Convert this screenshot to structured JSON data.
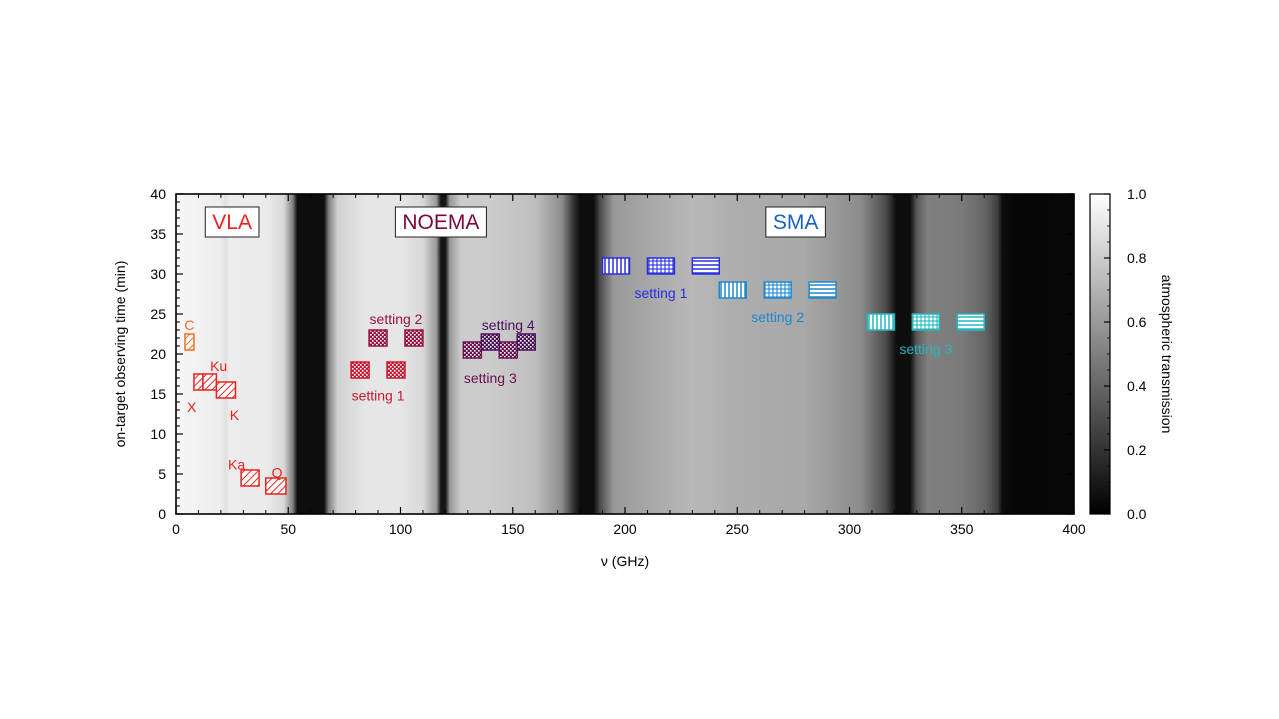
{
  "chart_data": {
    "type": "heatmap",
    "xlabel": "ν  (GHz)",
    "ylabel": "on-target observing time  (min)",
    "xlim": [
      0,
      400
    ],
    "ylim": [
      0,
      40
    ],
    "xticks": [
      "0",
      "50",
      "100",
      "150",
      "200",
      "250",
      "300",
      "350",
      "400"
    ],
    "yticks": [
      "0",
      "5",
      "10",
      "15",
      "20",
      "25",
      "30",
      "35",
      "40"
    ],
    "colorbar": {
      "label": "atmospheric transmission",
      "range": [
        0.0,
        1.0
      ],
      "ticks": [
        "0.0",
        "0.2",
        "0.4",
        "0.6",
        "0.8",
        "1.0"
      ],
      "colormap": "grayscale"
    },
    "transmission_profile": [
      [
        0,
        0.97
      ],
      [
        20,
        0.93
      ],
      [
        22,
        0.88
      ],
      [
        24,
        0.93
      ],
      [
        40,
        0.92
      ],
      [
        48,
        0.85
      ],
      [
        52,
        0.5
      ],
      [
        54,
        0.05
      ],
      [
        66,
        0.05
      ],
      [
        68,
        0.5
      ],
      [
        72,
        0.82
      ],
      [
        85,
        0.9
      ],
      [
        100,
        0.9
      ],
      [
        110,
        0.85
      ],
      [
        116,
        0.6
      ],
      [
        118,
        0.08
      ],
      [
        120,
        0.08
      ],
      [
        122,
        0.6
      ],
      [
        127,
        0.8
      ],
      [
        140,
        0.8
      ],
      [
        160,
        0.75
      ],
      [
        172,
        0.55
      ],
      [
        177,
        0.2
      ],
      [
        180,
        0.05
      ],
      [
        186,
        0.05
      ],
      [
        189,
        0.3
      ],
      [
        195,
        0.6
      ],
      [
        230,
        0.72
      ],
      [
        250,
        0.68
      ],
      [
        280,
        0.66
      ],
      [
        305,
        0.55
      ],
      [
        316,
        0.3
      ],
      [
        321,
        0.05
      ],
      [
        327,
        0.05
      ],
      [
        330,
        0.35
      ],
      [
        335,
        0.5
      ],
      [
        350,
        0.48
      ],
      [
        360,
        0.4
      ],
      [
        366,
        0.25
      ],
      [
        368,
        0.05
      ],
      [
        375,
        0.02
      ],
      [
        400,
        0.03
      ]
    ],
    "facilities": [
      {
        "name": "VLA",
        "x": 25,
        "y": 36.5,
        "color": "#e8231e"
      },
      {
        "name": "NOEMA",
        "x": 118,
        "y": 36.5,
        "color": "#7a0a3a"
      },
      {
        "name": "SMA",
        "x": 276,
        "y": 36.5,
        "color": "#1a5fc8"
      }
    ],
    "bands": [
      {
        "group": "VLA",
        "label": "C",
        "x0": 4,
        "x1": 8,
        "y0": 20.5,
        "y1": 22.5,
        "color": "#f07024",
        "pattern": "diag"
      },
      {
        "group": "VLA",
        "label": "X",
        "x0": 8,
        "x1": 12,
        "y0": 15.5,
        "y1": 17.5,
        "color": "#e8231e",
        "pattern": "diag"
      },
      {
        "group": "VLA",
        "label": "Ku",
        "x0": 12,
        "x1": 18,
        "y0": 15.5,
        "y1": 17.5,
        "color": "#e8231e",
        "pattern": "diag"
      },
      {
        "group": "VLA",
        "label": "K",
        "x0": 18,
        "x1": 26.5,
        "y0": 14.5,
        "y1": 16.5,
        "color": "#e8231e",
        "pattern": "diag"
      },
      {
        "group": "VLA",
        "label": "Ka",
        "x0": 29,
        "x1": 37,
        "y0": 3.5,
        "y1": 5.5,
        "color": "#e8231e",
        "pattern": "diag"
      },
      {
        "group": "VLA",
        "label": "Q",
        "x0": 40,
        "x1": 49,
        "y0": 2.5,
        "y1": 4.5,
        "color": "#e8231e",
        "pattern": "diag"
      },
      {
        "group": "NOEMA",
        "label": "setting 1",
        "x0": 78,
        "x1": 86,
        "y0": 17,
        "y1": 19,
        "color": "#c81a30",
        "pattern": "check"
      },
      {
        "group": "NOEMA",
        "label": "setting 1",
        "x0": 94,
        "x1": 102,
        "y0": 17,
        "y1": 19,
        "color": "#c81a30",
        "pattern": "check"
      },
      {
        "group": "NOEMA",
        "label": "setting 2",
        "x0": 86,
        "x1": 94,
        "y0": 21,
        "y1": 23,
        "color": "#98143e",
        "pattern": "check"
      },
      {
        "group": "NOEMA",
        "label": "setting 2",
        "x0": 102,
        "x1": 110,
        "y0": 21,
        "y1": 23,
        "color": "#98143e",
        "pattern": "check"
      },
      {
        "group": "NOEMA",
        "label": "setting 3",
        "x0": 128,
        "x1": 136,
        "y0": 19.5,
        "y1": 21.5,
        "color": "#6a1050",
        "pattern": "check"
      },
      {
        "group": "NOEMA",
        "label": "setting 3",
        "x0": 144,
        "x1": 152,
        "y0": 19.5,
        "y1": 21.5,
        "color": "#6a1050",
        "pattern": "check"
      },
      {
        "group": "NOEMA",
        "label": "setting 4",
        "x0": 136,
        "x1": 144,
        "y0": 20.5,
        "y1": 22.5,
        "color": "#4a1058",
        "pattern": "check"
      },
      {
        "group": "NOEMA",
        "label": "setting 4",
        "x0": 152,
        "x1": 160,
        "y0": 20.5,
        "y1": 22.5,
        "color": "#4a1058",
        "pattern": "check"
      },
      {
        "group": "SMA",
        "label": "setting 1",
        "x0": 190,
        "x1": 202,
        "y0": 30,
        "y1": 32,
        "color": "#2a2ee0",
        "pattern": "vert"
      },
      {
        "group": "SMA",
        "label": "setting 1",
        "x0": 210,
        "x1": 222,
        "y0": 30,
        "y1": 32,
        "color": "#2a2ee0",
        "pattern": "grid"
      },
      {
        "group": "SMA",
        "label": "setting 1",
        "x0": 230,
        "x1": 242,
        "y0": 30,
        "y1": 32,
        "color": "#2a2ee0",
        "pattern": "horiz"
      },
      {
        "group": "SMA",
        "label": "setting 2",
        "x0": 242,
        "x1": 254,
        "y0": 27,
        "y1": 29,
        "color": "#1e88d0",
        "pattern": "vert"
      },
      {
        "group": "SMA",
        "label": "setting 2",
        "x0": 262,
        "x1": 274,
        "y0": 27,
        "y1": 29,
        "color": "#1e88d0",
        "pattern": "grid"
      },
      {
        "group": "SMA",
        "label": "setting 2",
        "x0": 282,
        "x1": 294,
        "y0": 27,
        "y1": 29,
        "color": "#1e88d0",
        "pattern": "horiz"
      },
      {
        "group": "SMA",
        "label": "setting 3",
        "x0": 308,
        "x1": 320,
        "y0": 23,
        "y1": 25,
        "color": "#22b8c0",
        "pattern": "vert"
      },
      {
        "group": "SMA",
        "label": "setting 3",
        "x0": 328,
        "x1": 340,
        "y0": 23,
        "y1": 25,
        "color": "#22b8c0",
        "pattern": "grid"
      },
      {
        "group": "SMA",
        "label": "setting 3",
        "x0": 348,
        "x1": 360,
        "y0": 23,
        "y1": 25,
        "color": "#22b8c0",
        "pattern": "horiz"
      }
    ],
    "annotations": [
      {
        "text": "C",
        "x": 6,
        "y": 23.6,
        "color": "#f07024"
      },
      {
        "text": "Ku",
        "x": 19,
        "y": 18.5,
        "color": "#e8231e"
      },
      {
        "text": "X",
        "x": 7,
        "y": 13.4,
        "color": "#e8231e"
      },
      {
        "text": "K",
        "x": 26,
        "y": 12.4,
        "color": "#e8231e"
      },
      {
        "text": "Ka",
        "x": 27,
        "y": 6.2,
        "color": "#e8231e"
      },
      {
        "text": "Q",
        "x": 45,
        "y": 5.2,
        "color": "#e8231e"
      },
      {
        "text": "setting 2",
        "x": 98,
        "y": 24.4,
        "color": "#98143e"
      },
      {
        "text": "setting 1",
        "x": 90,
        "y": 14.8,
        "color": "#c81a30"
      },
      {
        "text": "setting 4",
        "x": 148,
        "y": 23.6,
        "color": "#4a1058"
      },
      {
        "text": "setting 3",
        "x": 140,
        "y": 17.0,
        "color": "#6a1050"
      },
      {
        "text": "setting 1",
        "x": 216,
        "y": 27.6,
        "color": "#2a2ee0"
      },
      {
        "text": "setting 2",
        "x": 268,
        "y": 24.6,
        "color": "#1e88d0"
      },
      {
        "text": "setting 3",
        "x": 334,
        "y": 20.6,
        "color": "#22b8c0"
      }
    ]
  }
}
